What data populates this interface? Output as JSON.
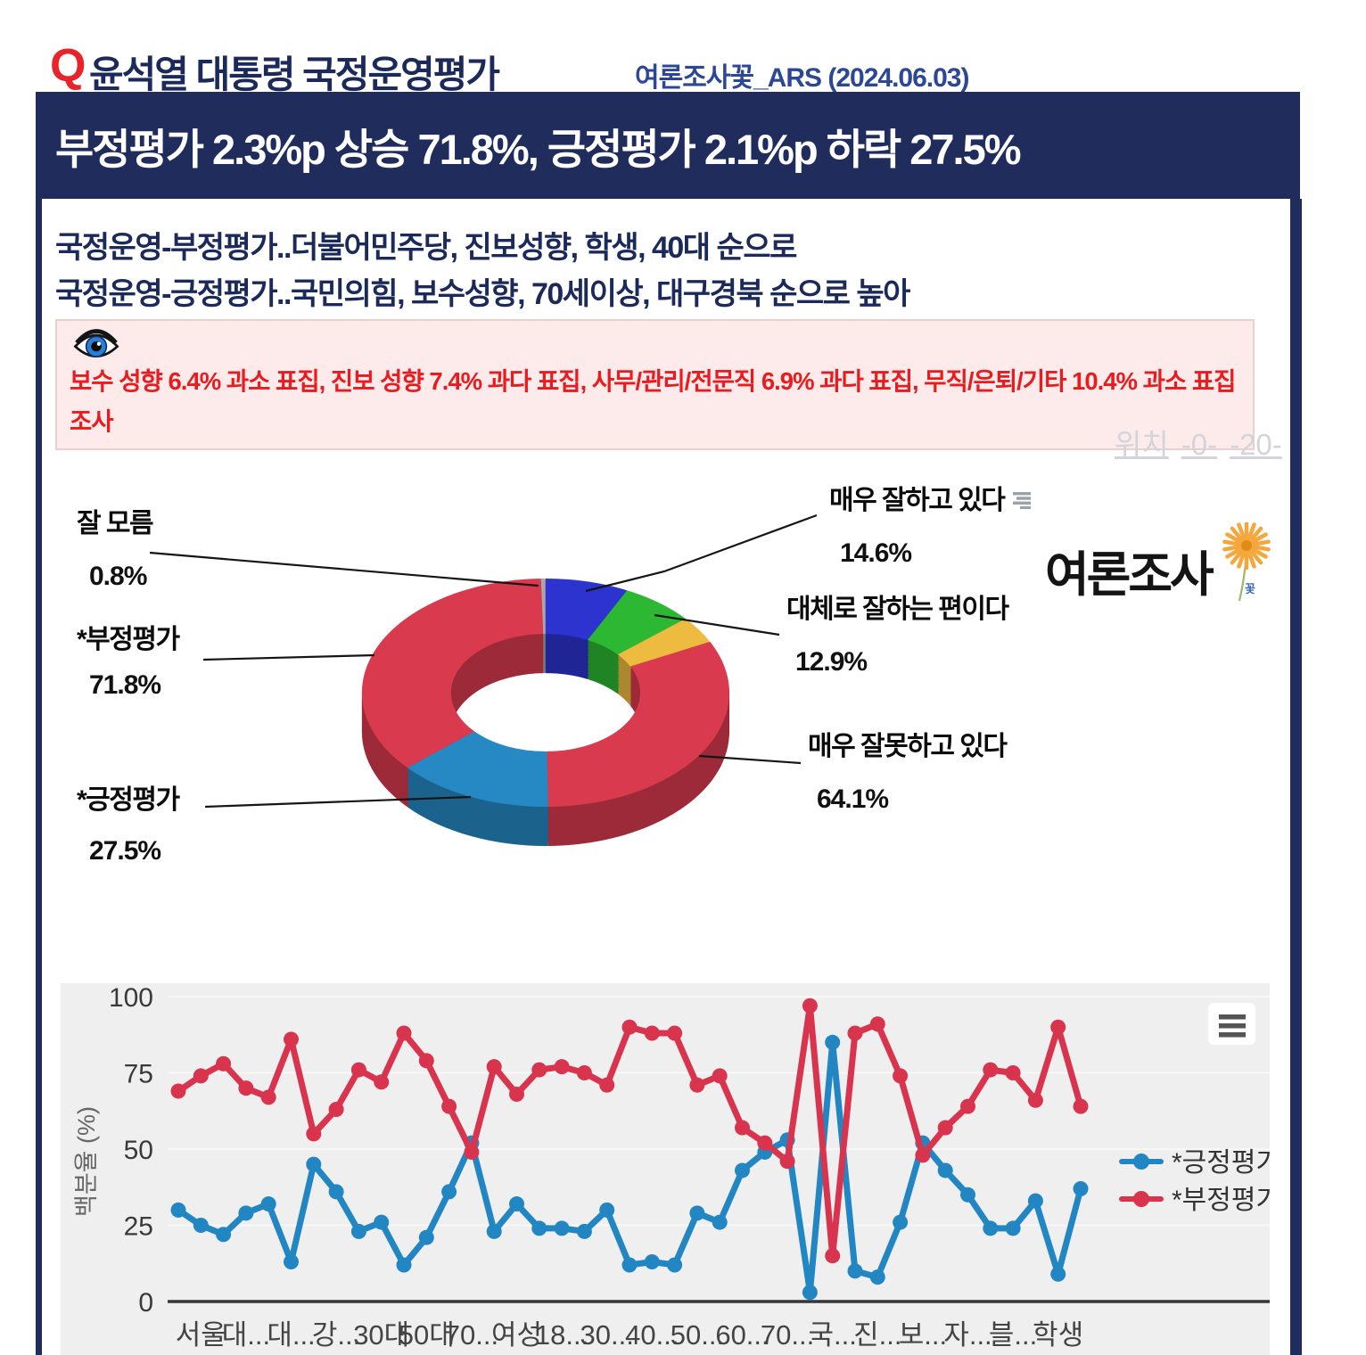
{
  "header": {
    "q": "Q",
    "title": "윤석열 대통령 국정운영평가",
    "source": "여론조사꽃_ARS (2024.06.03)"
  },
  "banner": {
    "text": "부정평가 2.3%p 상승 71.8%, 긍정평가 2.1%p 하락 27.5%"
  },
  "subtitle": {
    "line1": "국정운영-부정평가..더불어민주당, 진보성향, 학생, 40대 순으로",
    "line2": "국정운영-긍정평가..국민의힘, 보수성향, 70세이상, 대구경북 순으로 높아"
  },
  "notice": {
    "text": "보수 성향 6.4% 과소 표집, 진보 성향 7.4% 과다 표집, 사무/관리/전문직 6.9% 과다 표집, 무직/은퇴/기타 10.4% 과소 표집 조사"
  },
  "position_links": {
    "label": "위치",
    "links": [
      "-0-",
      "-20-"
    ]
  },
  "logo": {
    "text": "여론조사",
    "badge": "꽃",
    "flower_color": "#f3a73c"
  },
  "donut_labels": {
    "left": [
      {
        "label": "잘 모름",
        "pct": "0.8%"
      },
      {
        "label": "*부정평가",
        "pct": "71.8%"
      },
      {
        "label": "*긍정평가",
        "pct": "27.5%"
      }
    ],
    "right": [
      {
        "label": "매우 잘하고 있다",
        "pct": "14.6%"
      },
      {
        "label": "대체로 잘하는 편이다",
        "pct": "12.9%"
      },
      {
        "label": "매우 잘못하고 있다",
        "pct": "64.1%"
      }
    ]
  },
  "chart_data": [
    {
      "type": "pie",
      "style": "3d-donut",
      "total_note": "pie total is ~200%: detail answers plus aggregate 긍정/부정 slices",
      "slices": [
        {
          "label": "잘 모름",
          "value": 0.8,
          "color": "#a6a6ac"
        },
        {
          "label": "매우 잘하고 있다",
          "value": 14.6,
          "color": "#2d33cf"
        },
        {
          "label": "대체로 잘하는 편이다",
          "value": 12.9,
          "color": "#2cb832"
        },
        {
          "label": "",
          "value": 7.7,
          "color": "#eebb41"
        },
        {
          "label": "매우 잘못하고 있다",
          "value": 64.1,
          "color": "#d93a4e"
        },
        {
          "label": "*긍정평가",
          "value": 27.5,
          "color": "#2689c4"
        },
        {
          "label": "*부정평가",
          "value": 71.8,
          "color": "#d93a4e"
        }
      ]
    },
    {
      "type": "line",
      "ylabel": "백분율 (%)",
      "ylim": [
        0,
        100
      ],
      "yticks": [
        0,
        25,
        50,
        75,
        100
      ],
      "legend_position": "right",
      "categories": [
        "",
        "서울",
        "",
        "대...",
        "",
        "대...",
        "",
        "강...",
        "",
        "30대",
        "",
        "50대",
        "",
        "70...",
        "",
        "여성",
        "",
        "18...",
        "",
        "30...",
        "",
        "40...",
        "",
        "50...",
        "",
        "60...",
        "",
        "70...",
        "",
        "국...",
        "",
        "진...",
        "",
        "보...",
        "",
        "자...",
        "",
        "블...",
        "",
        "학생",
        ""
      ],
      "series": [
        {
          "name": "*긍정평가",
          "color": "#2286c2",
          "values": [
            30,
            25,
            22,
            29,
            32,
            13,
            45,
            36,
            23,
            26,
            12,
            21,
            36,
            52,
            23,
            32,
            24,
            24,
            23,
            30,
            12,
            13,
            12,
            29,
            26,
            43,
            49,
            53,
            3,
            85,
            10,
            8,
            26,
            52,
            43,
            35,
            24,
            24,
            33,
            9,
            37
          ]
        },
        {
          "name": "*부정평가",
          "color": "#d8344e",
          "values": [
            69,
            74,
            78,
            70,
            67,
            86,
            55,
            63,
            76,
            72,
            88,
            79,
            64,
            49,
            77,
            68,
            76,
            77,
            75,
            71,
            90,
            88,
            88,
            71,
            74,
            57,
            52,
            46,
            97,
            15,
            88,
            91,
            74,
            48,
            57,
            64,
            76,
            75,
            66,
            90,
            64
          ]
        }
      ]
    }
  ]
}
